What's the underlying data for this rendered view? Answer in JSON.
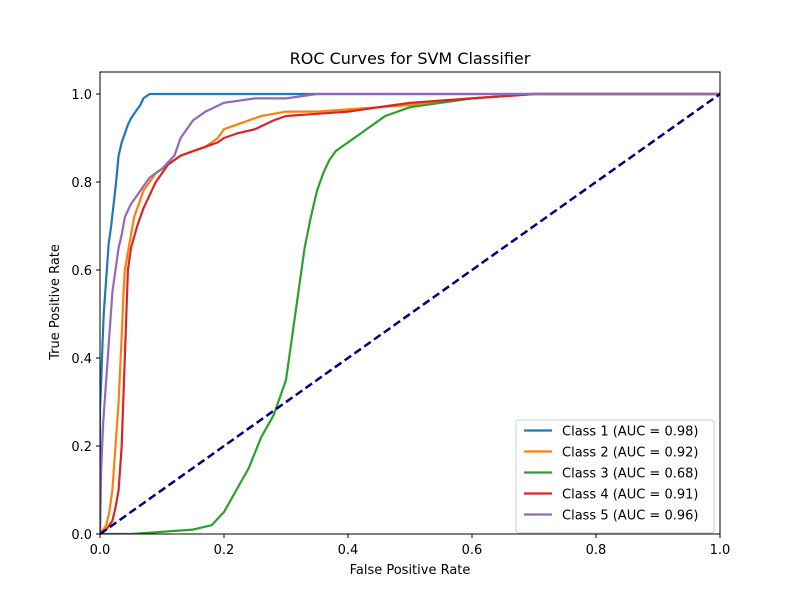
{
  "chart_data": {
    "type": "line",
    "title": "ROC Curves for SVM Classifier",
    "xlabel": "False Positive Rate",
    "ylabel": "True Positive Rate",
    "xlim": [
      0.0,
      1.0
    ],
    "ylim": [
      0.0,
      1.05
    ],
    "xticks": [
      "0.0",
      "0.2",
      "0.4",
      "0.6",
      "0.8",
      "1.0"
    ],
    "yticks": [
      "0.0",
      "0.2",
      "0.4",
      "0.6",
      "0.8",
      "1.0"
    ],
    "grid": false,
    "legend_position": "lower-right",
    "diagonal": {
      "x": [
        0,
        1
      ],
      "y": [
        0,
        1
      ],
      "color": "#000080",
      "style": "dashed"
    },
    "series": [
      {
        "name": "Class 1 (AUC = 0.98)",
        "color": "#1f77b4",
        "x": [
          0,
          0,
          0.002,
          0.004,
          0.006,
          0.008,
          0.01,
          0.012,
          0.014,
          0.018,
          0.022,
          0.026,
          0.03,
          0.035,
          0.04,
          0.045,
          0.05,
          0.055,
          0.06,
          0.065,
          0.07,
          0.075,
          0.08,
          0.1,
          0.2,
          0.3,
          0.35,
          1.0
        ],
        "y": [
          0,
          0.28,
          0.35,
          0.43,
          0.5,
          0.54,
          0.58,
          0.62,
          0.66,
          0.7,
          0.75,
          0.8,
          0.86,
          0.89,
          0.91,
          0.93,
          0.945,
          0.955,
          0.965,
          0.975,
          0.99,
          0.995,
          1.0,
          1.0,
          1.0,
          1.0,
          1.0,
          1.0
        ]
      },
      {
        "name": "Class 2 (AUC = 0.92)",
        "color": "#ff7f0e",
        "x": [
          0,
          0.01,
          0.015,
          0.02,
          0.025,
          0.03,
          0.035,
          0.038,
          0.04,
          0.045,
          0.05,
          0.055,
          0.06,
          0.065,
          0.07,
          0.08,
          0.09,
          0.1,
          0.11,
          0.12,
          0.13,
          0.15,
          0.17,
          0.19,
          0.2,
          0.22,
          0.24,
          0.26,
          0.28,
          0.3,
          0.35,
          0.4,
          0.45,
          0.5,
          0.55,
          0.6,
          0.7,
          0.8,
          0.9,
          1.0
        ],
        "y": [
          0,
          0.02,
          0.05,
          0.1,
          0.2,
          0.3,
          0.45,
          0.55,
          0.6,
          0.64,
          0.68,
          0.72,
          0.74,
          0.76,
          0.78,
          0.8,
          0.82,
          0.83,
          0.84,
          0.85,
          0.86,
          0.87,
          0.88,
          0.9,
          0.92,
          0.93,
          0.94,
          0.95,
          0.955,
          0.96,
          0.96,
          0.965,
          0.97,
          0.975,
          0.985,
          0.99,
          1.0,
          1.0,
          1.0,
          1.0
        ]
      },
      {
        "name": "Class 3 (AUC = 0.68)",
        "color": "#2ca02c",
        "x": [
          0,
          0.05,
          0.1,
          0.15,
          0.18,
          0.2,
          0.22,
          0.24,
          0.26,
          0.28,
          0.3,
          0.31,
          0.32,
          0.33,
          0.34,
          0.35,
          0.36,
          0.37,
          0.38,
          0.4,
          0.42,
          0.44,
          0.46,
          0.48,
          0.5,
          0.55,
          0.6,
          0.65,
          0.7,
          0.8,
          0.9,
          1.0
        ],
        "y": [
          0,
          0.0,
          0.005,
          0.01,
          0.02,
          0.05,
          0.1,
          0.15,
          0.22,
          0.27,
          0.35,
          0.45,
          0.55,
          0.65,
          0.72,
          0.78,
          0.82,
          0.85,
          0.87,
          0.89,
          0.91,
          0.93,
          0.95,
          0.96,
          0.97,
          0.98,
          0.99,
          0.995,
          1.0,
          1.0,
          1.0,
          1.0
        ]
      },
      {
        "name": "Class 4 (AUC = 0.91)",
        "color": "#d62728",
        "x": [
          0,
          0.01,
          0.02,
          0.025,
          0.03,
          0.035,
          0.04,
          0.045,
          0.05,
          0.06,
          0.07,
          0.08,
          0.09,
          0.1,
          0.11,
          0.12,
          0.13,
          0.15,
          0.17,
          0.19,
          0.2,
          0.22,
          0.25,
          0.28,
          0.3,
          0.35,
          0.4,
          0.45,
          0.5,
          0.55,
          0.6,
          0.65,
          0.7,
          0.8,
          0.9,
          1.0
        ],
        "y": [
          0,
          0.01,
          0.03,
          0.06,
          0.1,
          0.2,
          0.4,
          0.6,
          0.65,
          0.7,
          0.74,
          0.77,
          0.8,
          0.82,
          0.84,
          0.85,
          0.86,
          0.87,
          0.88,
          0.89,
          0.9,
          0.91,
          0.92,
          0.94,
          0.95,
          0.955,
          0.96,
          0.97,
          0.98,
          0.985,
          0.99,
          0.995,
          1.0,
          1.0,
          1.0,
          1.0
        ]
      },
      {
        "name": "Class 5 (AUC = 0.96)",
        "color": "#9467bd",
        "x": [
          0,
          0.002,
          0.005,
          0.01,
          0.015,
          0.02,
          0.025,
          0.03,
          0.035,
          0.04,
          0.05,
          0.06,
          0.07,
          0.08,
          0.09,
          0.1,
          0.12,
          0.13,
          0.15,
          0.17,
          0.2,
          0.25,
          0.3,
          0.35,
          0.4,
          0.5,
          0.6,
          0.7,
          0.8,
          0.9,
          1.0
        ],
        "y": [
          0,
          0.15,
          0.25,
          0.35,
          0.45,
          0.55,
          0.6,
          0.65,
          0.68,
          0.72,
          0.75,
          0.77,
          0.79,
          0.81,
          0.82,
          0.83,
          0.86,
          0.9,
          0.94,
          0.96,
          0.98,
          0.99,
          0.99,
          1.0,
          1.0,
          1.0,
          1.0,
          1.0,
          1.0,
          1.0,
          1.0
        ]
      }
    ]
  }
}
